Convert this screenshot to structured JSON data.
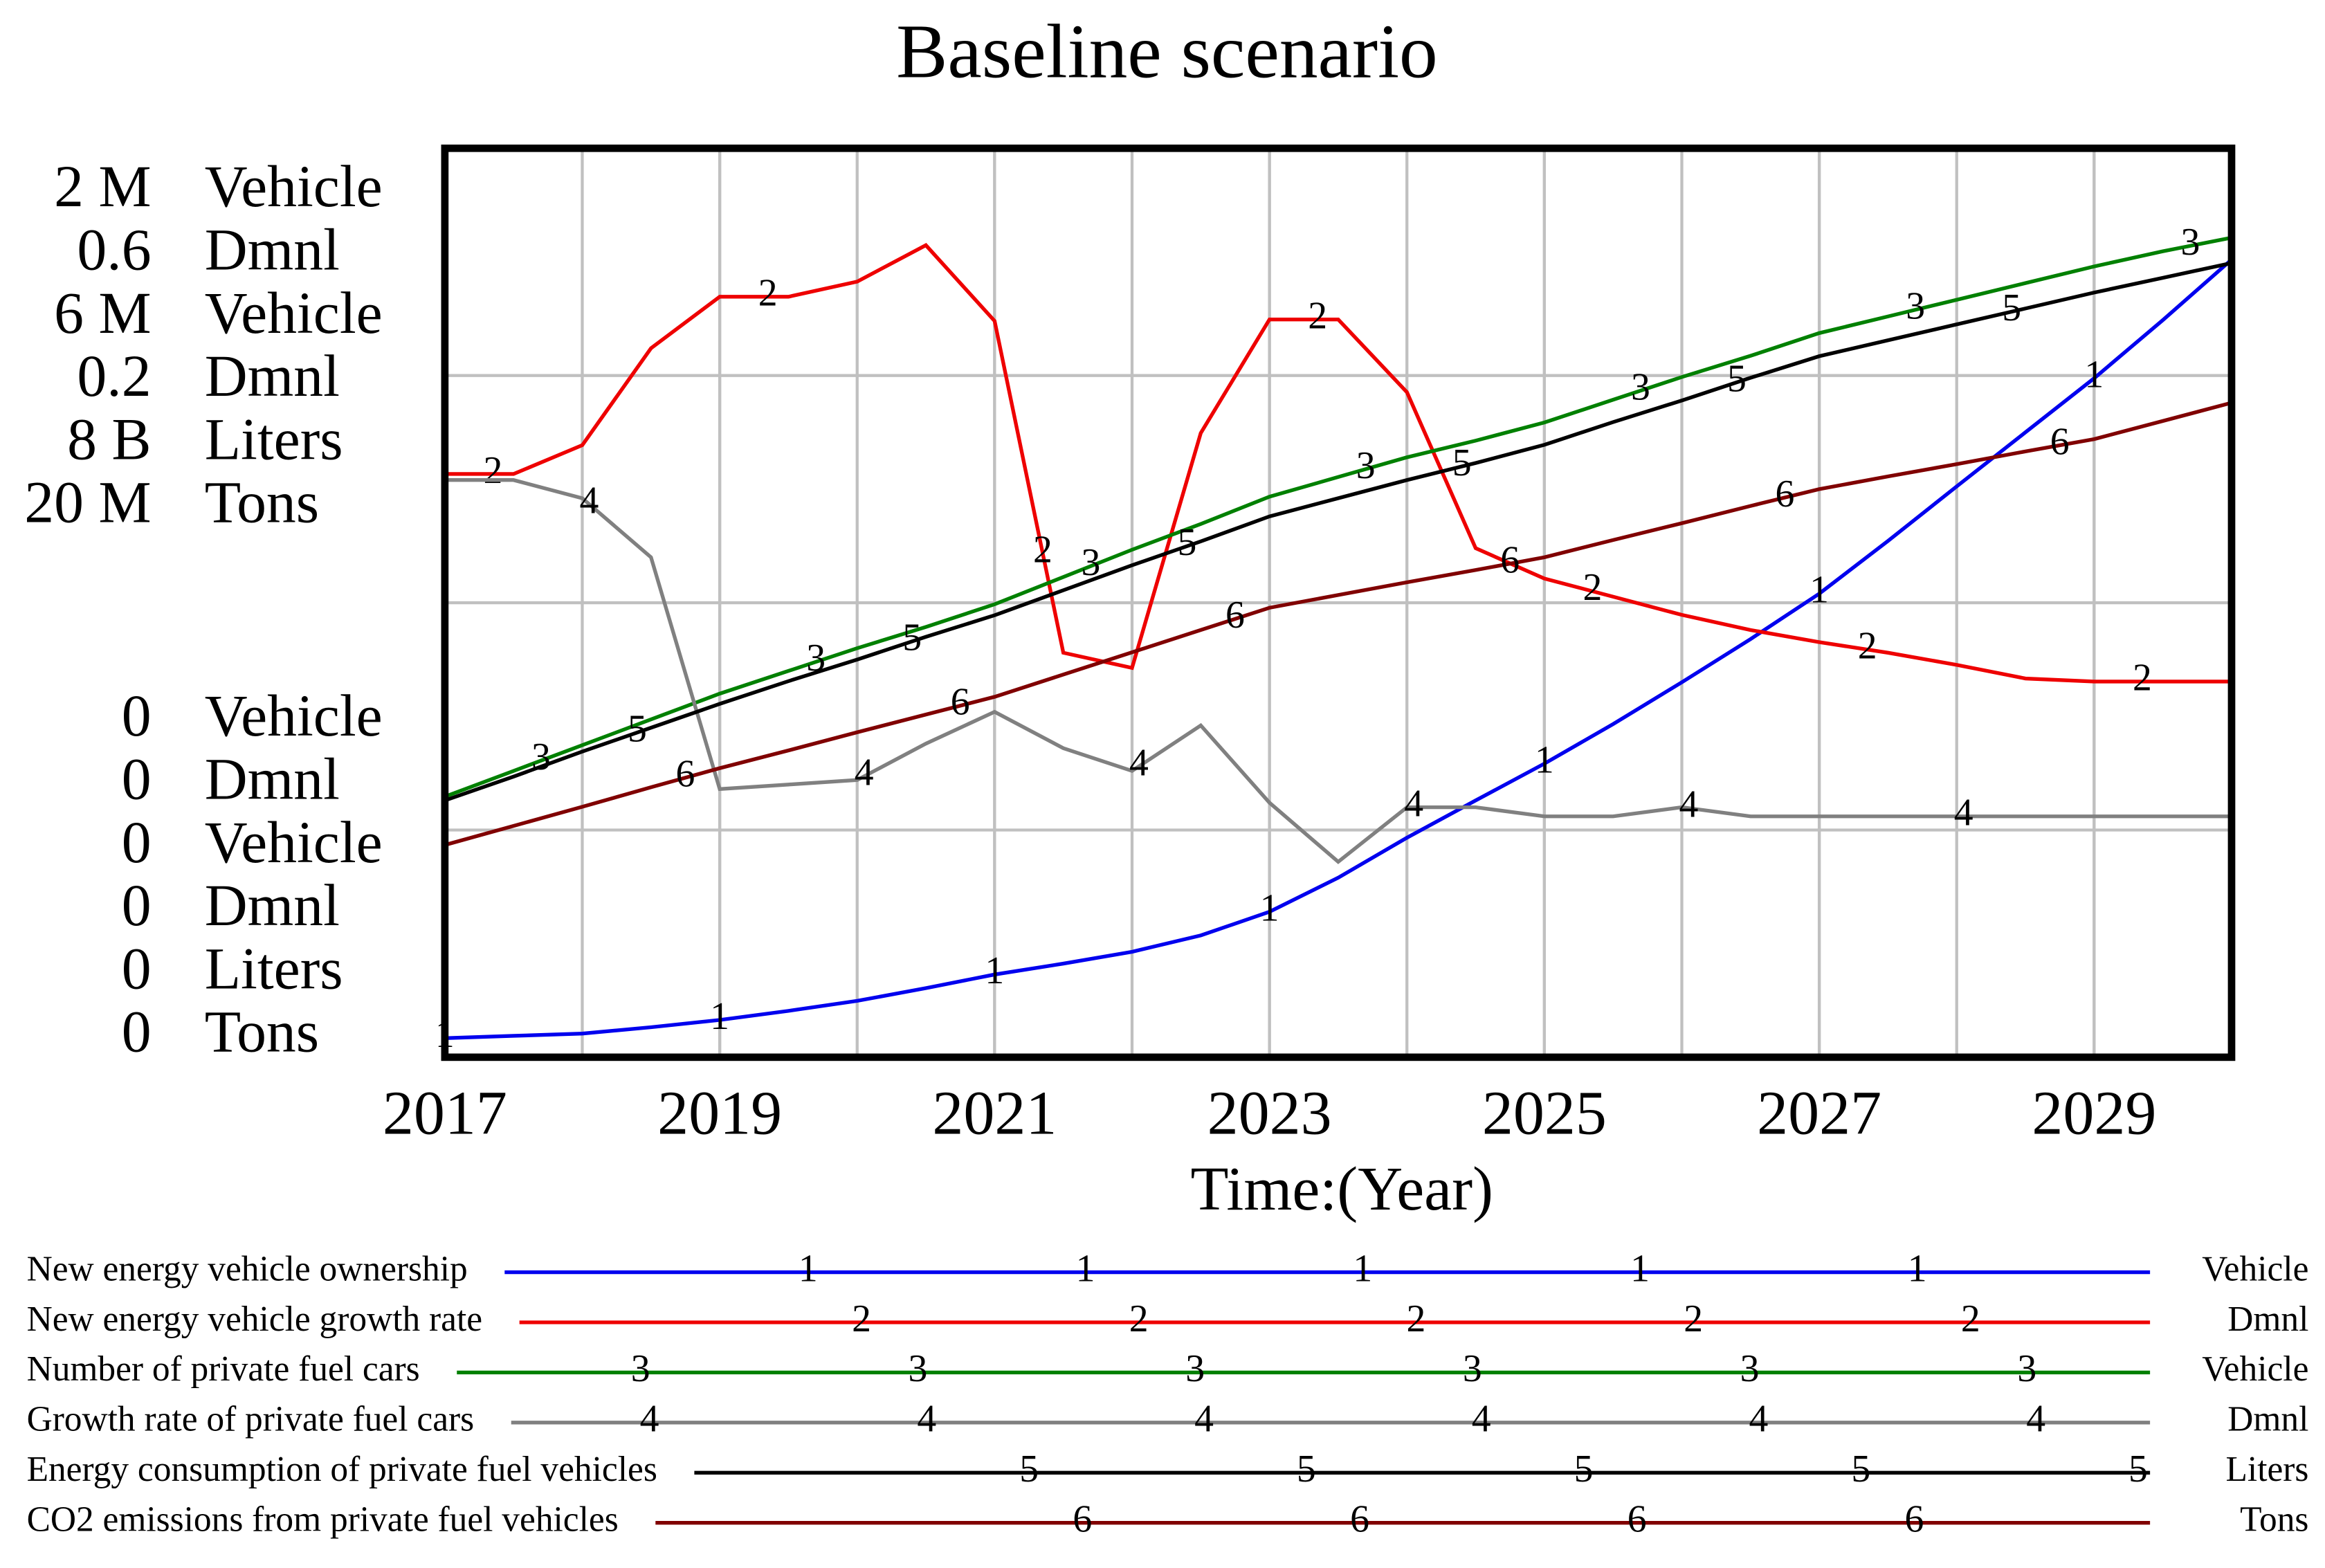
{
  "chart_data": {
    "type": "line",
    "title": "Baseline scenario",
    "x_label": "Time:(Year)",
    "x": [
      2017,
      2017.5,
      2018,
      2018.5,
      2019,
      2019.5,
      2020,
      2020.5,
      2021,
      2021.5,
      2022,
      2022.5,
      2023,
      2023.5,
      2024,
      2024.5,
      2025,
      2025.5,
      2026,
      2026.5,
      2027,
      2027.5,
      2028,
      2028.5,
      2029,
      2029.5,
      2030
    ],
    "xlim": [
      2017,
      2030
    ],
    "xticks": [
      2017,
      2019,
      2021,
      2023,
      2025,
      2027,
      2029
    ],
    "grid": true,
    "series": [
      {
        "name": "New energy vehicle ownership",
        "marker": "1",
        "unit": "Vehicle",
        "color": "#0000ee",
        "ylim": [
          0,
          2000000
        ],
        "yticks": [
          0,
          {
            "value": 2000000,
            "label": "2 M"
          }
        ],
        "values": [
          42000,
          47000,
          52000,
          66000,
          82000,
          102000,
          124000,
          152000,
          182000,
          206000,
          232000,
          268000,
          320000,
          395000,
          483000,
          565000,
          646000,
          733000,
          825000,
          920000,
          1020000,
          1136000,
          1256000,
          1375000,
          1494000,
          1622000,
          1755000
        ]
      },
      {
        "name": "New energy vehicle growth rate",
        "marker": "2",
        "unit": "Dmnl",
        "color": "#ee0000",
        "ylim": [
          0,
          0.6
        ],
        "yticks": [
          0,
          0.6
        ],
        "values": [
          0.385,
          0.385,
          0.404,
          0.468,
          0.502,
          0.502,
          0.512,
          0.536,
          0.486,
          0.267,
          0.257,
          0.412,
          0.487,
          0.487,
          0.439,
          0.336,
          0.316,
          0.304,
          0.292,
          0.282,
          0.274,
          0.267,
          0.259,
          0.25,
          0.248,
          0.248,
          0.248
        ]
      },
      {
        "name": "Number of private fuel cars",
        "marker": "3",
        "unit": "Vehicle",
        "color": "#008000",
        "ylim": [
          0,
          6000000
        ],
        "yticks": [
          0,
          {
            "value": 6000000,
            "label": "6 M"
          }
        ],
        "values": [
          1720000,
          1890000,
          2060000,
          2230000,
          2400000,
          2550000,
          2700000,
          2840000,
          2990000,
          3170000,
          3350000,
          3520000,
          3700000,
          3830000,
          3960000,
          4070000,
          4190000,
          4340000,
          4490000,
          4630000,
          4780000,
          4890000,
          5000000,
          5110000,
          5220000,
          5320000,
          5410000
        ]
      },
      {
        "name": "Growth rate of private fuel cars",
        "marker": "4",
        "unit": "Dmnl",
        "color": "#808080",
        "ylim": [
          0,
          0.2
        ],
        "yticks": [
          0,
          0.2
        ],
        "values": [
          0.127,
          0.127,
          0.123,
          0.11,
          0.059,
          0.06,
          0.061,
          0.069,
          0.076,
          0.068,
          0.063,
          0.073,
          0.056,
          0.043,
          0.055,
          0.055,
          0.053,
          0.053,
          0.055,
          0.053,
          0.053,
          0.053,
          0.053,
          0.053,
          0.053,
          0.053,
          0.053
        ]
      },
      {
        "name": "Energy consumption of private fuel vehicles",
        "marker": "5",
        "unit": "Liters",
        "color": "#000000",
        "ylim": [
          0,
          8000000000
        ],
        "yticks": [
          0,
          {
            "value": 8000000000,
            "label": "8 B"
          }
        ],
        "values": [
          2260000000,
          2470000000,
          2690000000,
          2900000000,
          3110000000,
          3310000000,
          3500000000,
          3700000000,
          3890000000,
          4110000000,
          4330000000,
          4540000000,
          4760000000,
          4920000000,
          5080000000,
          5230000000,
          5390000000,
          5590000000,
          5780000000,
          5980000000,
          6170000000,
          6310000000,
          6450000000,
          6590000000,
          6730000000,
          6860000000,
          6990000000
        ]
      },
      {
        "name": "CO2 emissions from private fuel vehicles",
        "marker": "6",
        "unit": "Tons",
        "color": "#800000",
        "ylim": [
          0,
          20000000
        ],
        "yticks": [
          0,
          {
            "value": 20000000,
            "label": "20 M"
          }
        ],
        "values": [
          4670000,
          5090000,
          5510000,
          5940000,
          6360000,
          6750000,
          7150000,
          7540000,
          7930000,
          8420000,
          8910000,
          9400000,
          9890000,
          10170000,
          10450000,
          10720000,
          11000000,
          11380000,
          11750000,
          12130000,
          12500000,
          12780000,
          13050000,
          13330000,
          13600000,
          14000000,
          14400000
        ]
      }
    ]
  }
}
